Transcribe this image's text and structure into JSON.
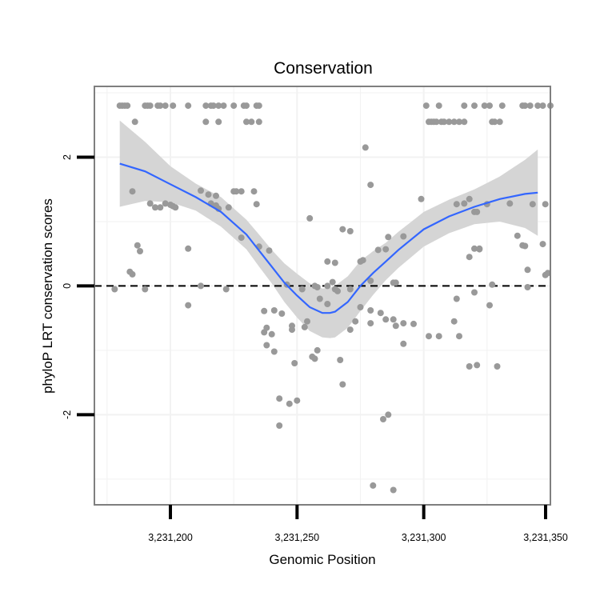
{
  "chart_data": {
    "type": "scatter",
    "title": "Conservation",
    "xlabel": "Genomic Position",
    "ylabel": "phyloP LRT conservation scores",
    "xlim": [
      3231170,
      3231350
    ],
    "ylim": [
      -3.4,
      3.1
    ],
    "x_ticks": [
      3231200,
      3231250,
      3231300,
      3231350
    ],
    "x_tick_labels": [
      "3,231,200",
      "3,231,250",
      "3,231,300",
      "3,231,350"
    ],
    "y_ticks": [
      -2,
      0,
      2
    ],
    "y_tick_labels": [
      "-2",
      "0",
      "2"
    ],
    "reference_line": {
      "y": 0,
      "style": "dashed"
    },
    "colors": {
      "points": "#999999",
      "smooth": "#3366ff",
      "band": "#d3d3d3",
      "panel_border": "#7f7f7f",
      "grid": "#f2f2f2"
    },
    "points": [
      [
        3231180,
        2.8
      ],
      [
        3231181,
        2.8
      ],
      [
        3231182,
        2.8
      ],
      [
        3231183,
        2.8
      ],
      [
        3231190,
        2.8
      ],
      [
        3231191,
        2.8
      ],
      [
        3231192,
        2.8
      ],
      [
        3231195,
        2.8
      ],
      [
        3231196,
        2.8
      ],
      [
        3231198,
        2.8
      ],
      [
        3231201,
        2.8
      ],
      [
        3231207,
        2.8
      ],
      [
        3231214,
        2.8
      ],
      [
        3231216,
        2.8
      ],
      [
        3231217,
        2.8
      ],
      [
        3231219,
        2.8
      ],
      [
        3231221,
        2.8
      ],
      [
        3231225,
        2.8
      ],
      [
        3231229,
        2.8
      ],
      [
        3231230,
        2.8
      ],
      [
        3231234,
        2.8
      ],
      [
        3231235,
        2.8
      ],
      [
        3231186,
        2.55
      ],
      [
        3231214,
        2.55
      ],
      [
        3231219,
        2.55
      ],
      [
        3231230,
        2.55
      ],
      [
        3231232,
        2.55
      ],
      [
        3231235,
        2.55
      ],
      [
        3231301,
        2.8
      ],
      [
        3231306,
        2.8
      ],
      [
        3231316,
        2.8
      ],
      [
        3231320,
        2.8
      ],
      [
        3231324,
        2.8
      ],
      [
        3231326,
        2.8
      ],
      [
        3231331,
        2.8
      ],
      [
        3231339,
        2.8
      ],
      [
        3231340,
        2.8
      ],
      [
        3231342,
        2.8
      ],
      [
        3231345,
        2.8
      ],
      [
        3231347,
        2.8
      ],
      [
        3231350,
        2.8
      ],
      [
        3231302,
        2.55
      ],
      [
        3231303,
        2.55
      ],
      [
        3231304,
        2.55
      ],
      [
        3231305,
        2.55
      ],
      [
        3231307,
        2.55
      ],
      [
        3231308,
        2.55
      ],
      [
        3231310,
        2.55
      ],
      [
        3231312,
        2.55
      ],
      [
        3231314,
        2.55
      ],
      [
        3231316,
        2.55
      ],
      [
        3231327,
        2.55
      ],
      [
        3231328,
        2.55
      ],
      [
        3231330,
        2.55
      ],
      [
        3231277,
        2.15
      ],
      [
        3231279,
        1.57
      ],
      [
        3231185,
        1.47
      ],
      [
        3231212,
        1.48
      ],
      [
        3231215,
        1.42
      ],
      [
        3231218,
        1.4
      ],
      [
        3231225,
        1.47
      ],
      [
        3231226,
        1.47
      ],
      [
        3231228,
        1.47
      ],
      [
        3231233,
        1.47
      ],
      [
        3231299,
        1.35
      ],
      [
        3231318,
        1.35
      ],
      [
        3231192,
        1.28
      ],
      [
        3231194,
        1.22
      ],
      [
        3231196,
        1.22
      ],
      [
        3231198,
        1.28
      ],
      [
        3231200,
        1.26
      ],
      [
        3231201,
        1.24
      ],
      [
        3231202,
        1.22
      ],
      [
        3231216,
        1.28
      ],
      [
        3231218,
        1.25
      ],
      [
        3231219,
        1.2
      ],
      [
        3231223,
        1.22
      ],
      [
        3231234,
        1.27
      ],
      [
        3231313,
        1.27
      ],
      [
        3231316,
        1.28
      ],
      [
        3231320,
        1.15
      ],
      [
        3231321,
        1.15
      ],
      [
        3231325,
        1.27
      ],
      [
        3231334,
        1.28
      ],
      [
        3231343,
        1.27
      ],
      [
        3231348,
        1.27
      ],
      [
        3231255,
        1.05
      ],
      [
        3231268,
        0.88
      ],
      [
        3231271,
        0.85
      ],
      [
        3231286,
        0.76
      ],
      [
        3231292,
        0.77
      ],
      [
        3231320,
        0.58
      ],
      [
        3231322,
        0.57
      ],
      [
        3231337,
        0.78
      ],
      [
        3231339,
        0.63
      ],
      [
        3231340,
        0.62
      ],
      [
        3231341,
        0.25
      ],
      [
        3231187,
        0.63
      ],
      [
        3231188,
        0.54
      ],
      [
        3231207,
        0.58
      ],
      [
        3231228,
        0.75
      ],
      [
        3231235,
        0.61
      ],
      [
        3231239,
        0.55
      ],
      [
        3231262,
        0.38
      ],
      [
        3231265,
        0.36
      ],
      [
        3231275,
        0.38
      ],
      [
        3231276,
        0.4
      ],
      [
        3231282,
        0.56
      ],
      [
        3231285,
        0.57
      ],
      [
        3231318,
        0.45
      ],
      [
        3231322,
        0.58
      ],
      [
        3231347,
        0.65
      ],
      [
        3231348,
        0.17
      ],
      [
        3231349,
        0.2
      ],
      [
        3231184,
        0.22
      ],
      [
        3231185,
        0.18
      ],
      [
        3231279,
        0.08
      ],
      [
        3231288,
        0.05
      ],
      [
        3231289,
        0.05
      ],
      [
        3231327,
        0.02
      ],
      [
        3231341,
        -0.02
      ],
      [
        3231352,
        -0.02
      ],
      [
        3231178,
        -0.05
      ],
      [
        3231190,
        -0.05
      ],
      [
        3231212,
        0.0
      ],
      [
        3231222,
        -0.05
      ],
      [
        3231246,
        0.02
      ],
      [
        3231252,
        -0.05
      ],
      [
        3231257,
        0.0
      ],
      [
        3231258,
        -0.02
      ],
      [
        3231262,
        0.0
      ],
      [
        3231264,
        0.06
      ],
      [
        3231265,
        -0.05
      ],
      [
        3231266,
        -0.08
      ],
      [
        3231271,
        -0.05
      ],
      [
        3231259,
        -0.2
      ],
      [
        3231262,
        -0.28
      ],
      [
        3231254,
        -0.55
      ],
      [
        3231248,
        -0.62
      ],
      [
        3231244,
        -0.43
      ],
      [
        3231241,
        -0.38
      ],
      [
        3231237,
        -0.39
      ],
      [
        3231238,
        -0.65
      ],
      [
        3231275,
        -0.33
      ],
      [
        3231279,
        -0.38
      ],
      [
        3231283,
        -0.42
      ],
      [
        3231285,
        -0.52
      ],
      [
        3231288,
        -0.52
      ],
      [
        3231289,
        -0.62
      ],
      [
        3231296,
        -0.59
      ],
      [
        3231312,
        -0.55
      ],
      [
        3231313,
        -0.2
      ],
      [
        3231320,
        -0.1
      ],
      [
        3231326,
        -0.3
      ],
      [
        3231207,
        -0.3
      ],
      [
        3231237,
        -0.72
      ],
      [
        3231240,
        -0.75
      ],
      [
        3231248,
        -0.68
      ],
      [
        3231253,
        -0.64
      ],
      [
        3231271,
        -0.68
      ],
      [
        3231273,
        -0.55
      ],
      [
        3231279,
        -0.58
      ],
      [
        3231292,
        -0.58
      ],
      [
        3231306,
        -0.78
      ],
      [
        3231314,
        -0.78
      ],
      [
        3231238,
        -0.92
      ],
      [
        3231241,
        -1.02
      ],
      [
        3231249,
        -1.2
      ],
      [
        3231256,
        -1.1
      ],
      [
        3231257,
        -1.13
      ],
      [
        3231258,
        -1.0
      ],
      [
        3231267,
        -1.15
      ],
      [
        3231292,
        -0.9
      ],
      [
        3231302,
        -0.78
      ],
      [
        3231318,
        -1.25
      ],
      [
        3231321,
        -1.23
      ],
      [
        3231329,
        -1.25
      ],
      [
        3231243,
        -1.75
      ],
      [
        3231247,
        -1.83
      ],
      [
        3231250,
        -1.78
      ],
      [
        3231268,
        -1.53
      ],
      [
        3231243,
        -2.17
      ],
      [
        3231284,
        -2.07
      ],
      [
        3231286,
        -2.0
      ],
      [
        3231288,
        -3.17
      ],
      [
        3231280,
        -3.1
      ]
    ],
    "smooth": {
      "x": [
        3231180,
        3231190,
        3231200,
        3231210,
        3231220,
        3231230,
        3231235,
        3231240,
        3231245,
        3231250,
        3231255,
        3231260,
        3231263,
        3231265,
        3231270,
        3231275,
        3231280,
        3231285,
        3231290,
        3231300,
        3231310,
        3231320,
        3231330,
        3231340,
        3231345
      ],
      "y": [
        1.9,
        1.78,
        1.58,
        1.38,
        1.15,
        0.8,
        0.55,
        0.3,
        0.05,
        -0.15,
        -0.33,
        -0.42,
        -0.42,
        -0.4,
        -0.25,
        0.0,
        0.2,
        0.38,
        0.56,
        0.88,
        1.08,
        1.23,
        1.35,
        1.43,
        1.45
      ],
      "lower": [
        1.23,
        1.32,
        1.3,
        1.17,
        0.92,
        0.57,
        0.3,
        0.04,
        -0.25,
        -0.49,
        -0.7,
        -0.8,
        -0.81,
        -0.8,
        -0.65,
        -0.39,
        -0.14,
        0.09,
        0.28,
        0.61,
        0.82,
        0.96,
        1.0,
        0.9,
        0.78
      ],
      "upper": [
        2.57,
        2.24,
        1.86,
        1.59,
        1.38,
        1.03,
        0.8,
        0.56,
        0.35,
        0.19,
        0.04,
        -0.04,
        -0.03,
        0.0,
        0.15,
        0.39,
        0.54,
        0.67,
        0.84,
        1.15,
        1.34,
        1.5,
        1.7,
        1.96,
        2.12
      ]
    }
  }
}
